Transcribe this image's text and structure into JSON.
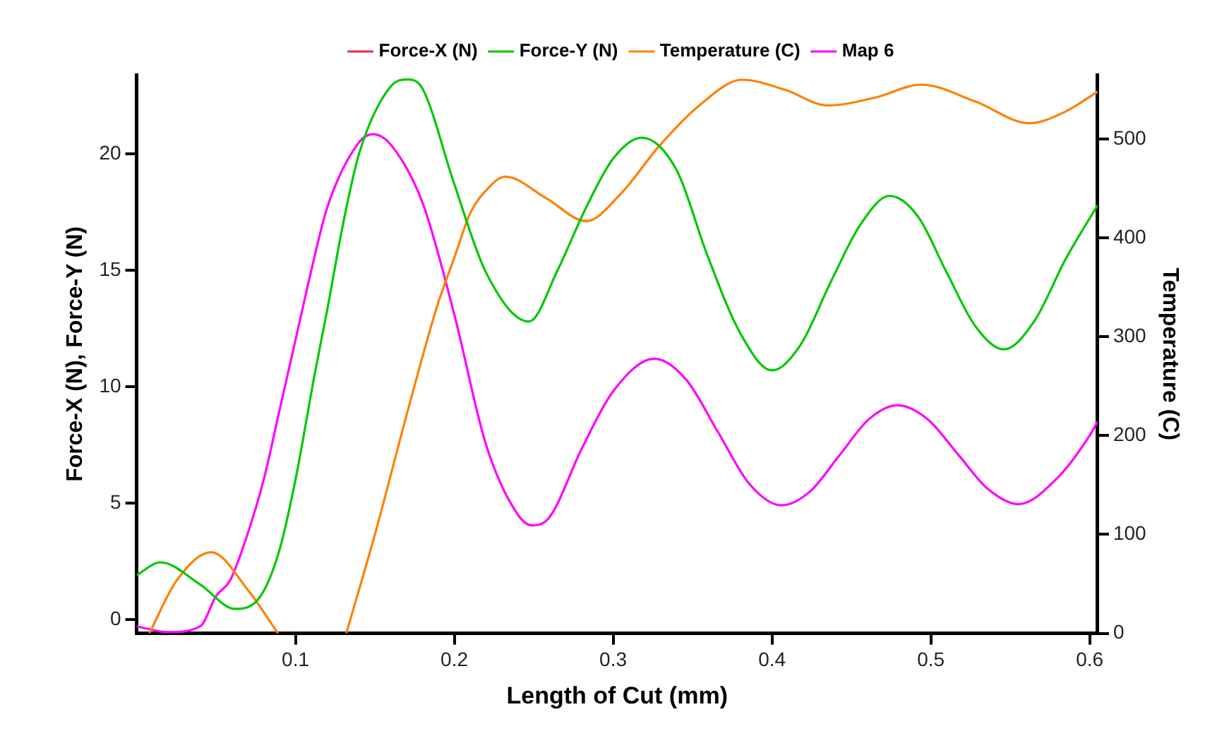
{
  "chart_data": {
    "type": "line",
    "xlabel": "Length of Cut (mm)",
    "ylabel": "Force-X (N), Force-Y (N)",
    "y2label": "Temperature (C)",
    "xlim": [
      0,
      0.605
    ],
    "xticks": [
      0.1,
      0.2,
      0.3,
      0.4,
      0.5,
      0.6
    ],
    "ylim": [
      -0.6,
      23.4
    ],
    "yticks": [
      0,
      5,
      10,
      15,
      20
    ],
    "y2lim": [
      0,
      565
    ],
    "y2ticks": [
      0,
      100,
      200,
      300,
      400,
      500
    ],
    "grid": false,
    "legend": "top",
    "marker": "none",
    "line_style": "solid",
    "series": [
      {
        "name": "Force-X (N)",
        "color": "#e0303a"
      },
      {
        "name": "Force-Y (N)",
        "color": "#00c800",
        "x": [
          0,
          0.015,
          0.04,
          0.062,
          0.078,
          0.09,
          0.1,
          0.112,
          0.12,
          0.13,
          0.14,
          0.16,
          0.171,
          0.18,
          0.2,
          0.22,
          0.247,
          0.265,
          0.283,
          0.3,
          0.318,
          0.34,
          0.359,
          0.38,
          0.4,
          0.418,
          0.437,
          0.456,
          0.474,
          0.492,
          0.51,
          0.528,
          0.546,
          0.565,
          0.585,
          0.605
        ],
        "values": [
          1.9,
          2.45,
          1.5,
          0.45,
          1.0,
          3.0,
          6.0,
          10.5,
          13.3,
          17.0,
          20.0,
          22.9,
          23.2,
          22.8,
          18.7,
          14.9,
          12.8,
          15.0,
          17.7,
          19.8,
          20.7,
          19.3,
          15.7,
          12.3,
          10.7,
          11.8,
          14.5,
          17.0,
          18.2,
          17.3,
          14.9,
          12.6,
          11.6,
          12.8,
          15.5,
          17.8
        ]
      },
      {
        "name": "Temperature (C)",
        "color": "#ff8000",
        "axis": "y2",
        "x": [
          0.008,
          0.025,
          0.047,
          0.07,
          0.089,
          0.11,
          0.132,
          0.15,
          0.172,
          0.189,
          0.2,
          0.21,
          0.22,
          0.232,
          0.258,
          0.283,
          0.305,
          0.329,
          0.355,
          0.381,
          0.408,
          0.435,
          0.465,
          0.494,
          0.528,
          0.562,
          0.585,
          0.605
        ],
        "values": [
          0,
          53,
          82,
          44,
          0,
          null,
          0,
          100,
          233,
          330,
          380,
          425,
          448,
          462,
          440,
          417,
          445,
          493,
          535,
          560,
          550,
          534,
          542,
          555,
          538,
          516,
          528,
          548
        ]
      },
      {
        "name": "Map 6",
        "color": "#ff00ff",
        "x": [
          0,
          0.02,
          0.04,
          0.05,
          0.059,
          0.07,
          0.08,
          0.09,
          0.1,
          0.11,
          0.12,
          0.14,
          0.149,
          0.16,
          0.18,
          0.2,
          0.22,
          0.24,
          0.249,
          0.26,
          0.28,
          0.3,
          0.326,
          0.346,
          0.366,
          0.386,
          0.406,
          0.424,
          0.4425,
          0.461,
          0.479,
          0.498,
          0.517,
          0.536,
          0.555,
          0.58,
          0.6,
          0.605
        ],
        "values": [
          -0.3,
          -0.55,
          -0.3,
          1.0,
          1.7,
          3.7,
          6.0,
          9.0,
          12.0,
          15.0,
          17.7,
          20.5,
          20.85,
          20.4,
          17.9,
          13.1,
          7.5,
          4.5,
          4.04,
          4.4,
          7.3,
          9.8,
          11.2,
          10.3,
          8.05,
          5.8,
          4.9,
          5.5,
          7.05,
          8.6,
          9.2,
          8.6,
          7.1,
          5.6,
          4.95,
          6.1,
          7.9,
          8.5
        ]
      }
    ]
  }
}
